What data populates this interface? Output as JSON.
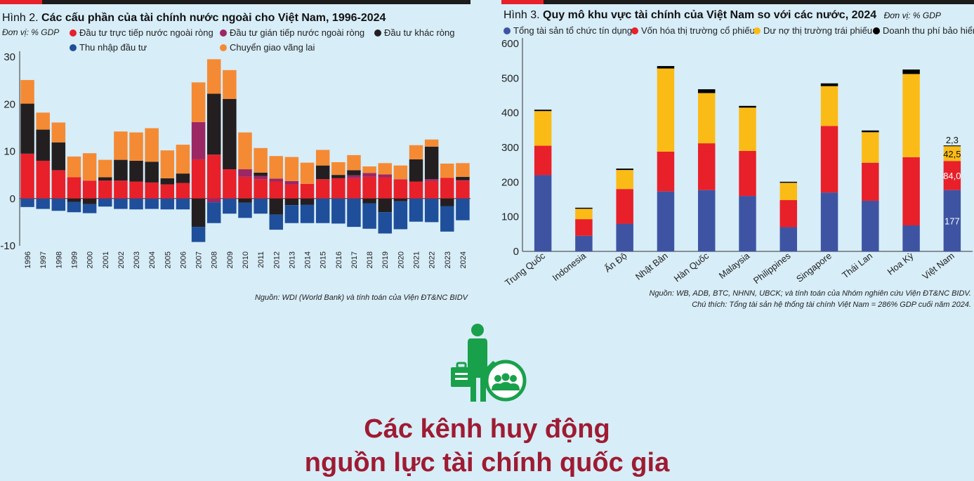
{
  "chart_data": [
    {
      "type": "bar",
      "stacked": true,
      "title_prefix": "Hình 2.",
      "title": "Các cấu phần của tài chính nước ngoài cho Việt Nam, 1996-2024",
      "unit_label": "Đơn vị: % GDP",
      "source": "Nguồn: WDI (World Bank) và tính toán của Viện ĐT&NC BIDV",
      "ylim": [
        -10,
        30
      ],
      "yticks": [
        -10,
        0,
        10,
        20,
        30
      ],
      "grid": false,
      "legend_placement": "top",
      "categories": [
        "1996",
        "1997",
        "1998",
        "1999",
        "2000",
        "2001",
        "2002",
        "2003",
        "2004",
        "2005",
        "2006",
        "2007",
        "2008",
        "2009",
        "2010",
        "2011",
        "2012",
        "2013",
        "2014",
        "2015",
        "2016",
        "2017",
        "2018",
        "2019",
        "2020",
        "2021",
        "2022",
        "2023",
        "2024"
      ],
      "series": [
        {
          "name": "Đầu tư trực tiếp nước ngoài ròng",
          "color": "#e8202a",
          "values": [
            9.5,
            8.0,
            6.0,
            4.5,
            3.8,
            3.8,
            3.8,
            3.6,
            3.4,
            3.0,
            3.3,
            8.3,
            9.3,
            6.2,
            4.6,
            4.1,
            3.6,
            3.0,
            3.1,
            4.1,
            4.3,
            4.3,
            4.6,
            4.5,
            4.0,
            3.6,
            3.7,
            4.4,
            3.8
          ]
        },
        {
          "name": "Đầu tư gián tiếp nước ngoài ròng",
          "color": "#9b2765",
          "values": [
            0,
            0,
            0,
            0,
            0,
            0,
            0,
            0,
            0,
            0,
            0,
            7.9,
            -0.8,
            0,
            1.6,
            0.7,
            0.6,
            0.7,
            0,
            0,
            0,
            0.6,
            0.8,
            0.6,
            0.1,
            0,
            0.4,
            0,
            0.1
          ]
        },
        {
          "name": "Đầu tư khác ròng",
          "color": "#231f20",
          "values": [
            10.6,
            6.6,
            5.9,
            -0.7,
            -1.2,
            0.7,
            4.4,
            4.4,
            4.4,
            1.3,
            2.0,
            -6.0,
            12.9,
            14.9,
            -0.9,
            0.7,
            -3.4,
            -1.4,
            -1.3,
            2.9,
            0.7,
            1.1,
            -1.0,
            -2.9,
            -0.6,
            4.7,
            6.9,
            -1.6,
            0.7
          ]
        },
        {
          "name": "Thu nhập đầu tư",
          "color": "#1f4f9a",
          "values": [
            -1.8,
            -2.2,
            -2.6,
            -2.2,
            -1.9,
            -1.7,
            -2.2,
            -2.3,
            -2.2,
            -2.3,
            -2.3,
            -3.2,
            -4.4,
            -3.2,
            -3.2,
            -3.2,
            -3.2,
            -3.8,
            -3.9,
            -5.2,
            -5.3,
            -6.0,
            -5.4,
            -4.5,
            -5.9,
            -4.9,
            -5.0,
            -5.4,
            -4.6
          ]
        },
        {
          "name": "Chuyển giao vãng lai",
          "color": "#f58a34",
          "values": [
            5.0,
            3.6,
            4.2,
            4.4,
            5.8,
            3.7,
            6.0,
            6.0,
            7.1,
            5.9,
            6.1,
            8.4,
            7.3,
            6.1,
            7.8,
            5.2,
            4.8,
            5.1,
            4.5,
            3.3,
            2.7,
            3.2,
            1.4,
            2.4,
            2.9,
            3.0,
            1.5,
            3.0,
            2.9
          ]
        }
      ]
    },
    {
      "type": "bar",
      "stacked": true,
      "title_prefix": "Hình 3.",
      "title": "Quy mô khu vực tài chính của Việt Nam so với các nước, 2024",
      "unit_label": "Đơn vị: % GDP",
      "source": "Nguồn: WB, ADB, BTC, NHNN, UBCK; và tính toán của Nhóm nghiên cứu Viện ĐT&NC BIDV.",
      "note": "Chú thích: Tổng tài sản hệ thống tài chính Việt Nam = 286% GDP cuối năm 2024.",
      "ylim": [
        0,
        600
      ],
      "yticks": [
        0,
        100,
        200,
        300,
        400,
        500,
        600
      ],
      "grid": false,
      "legend_placement": "top",
      "categories": [
        "Trung Quốc",
        "Indonesia",
        "Ấn Độ",
        "Nhật Bản",
        "Hàn Quốc",
        "Malaysia",
        "Philippines",
        "Singapore",
        "Thái Lan",
        "Hoa Kỳ",
        "Việt Nam"
      ],
      "series": [
        {
          "name": "Tổng tài sản tổ chức tín dụng",
          "color": "#3e54a3",
          "values": [
            220,
            45,
            80,
            173,
            177,
            160,
            70,
            170,
            146,
            75,
            177
          ]
        },
        {
          "name": "Vốn hóa thị trường cổ phiếu",
          "color": "#e8202a",
          "values": [
            85,
            48,
            100,
            115,
            135,
            130,
            78,
            192,
            110,
            197,
            84.0
          ]
        },
        {
          "name": "Dư nợ thị trường trái phiếu",
          "color": "#fbbb16",
          "values": [
            100,
            30,
            55,
            240,
            145,
            125,
            50,
            115,
            88,
            240,
            42.5
          ]
        },
        {
          "name": "Doanh thu phí bảo hiểm",
          "color": "#000000",
          "values": [
            4,
            3,
            4,
            7,
            11,
            5,
            3,
            8,
            5,
            13,
            2.3
          ]
        }
      ],
      "data_labels": [
        "177",
        "84,0",
        "42,5",
        "2,3"
      ]
    }
  ],
  "headline": {
    "line1": "Các kênh huy động",
    "line2": "nguồn lực tài chính quốc gia"
  },
  "colors": {
    "accent_red": "#e8202a",
    "headline": "#9e1b32",
    "icon_green": "#19a04b",
    "background": "#d7edf8"
  },
  "icons": {
    "center": "person-with-briefcase-and-group-icon"
  }
}
